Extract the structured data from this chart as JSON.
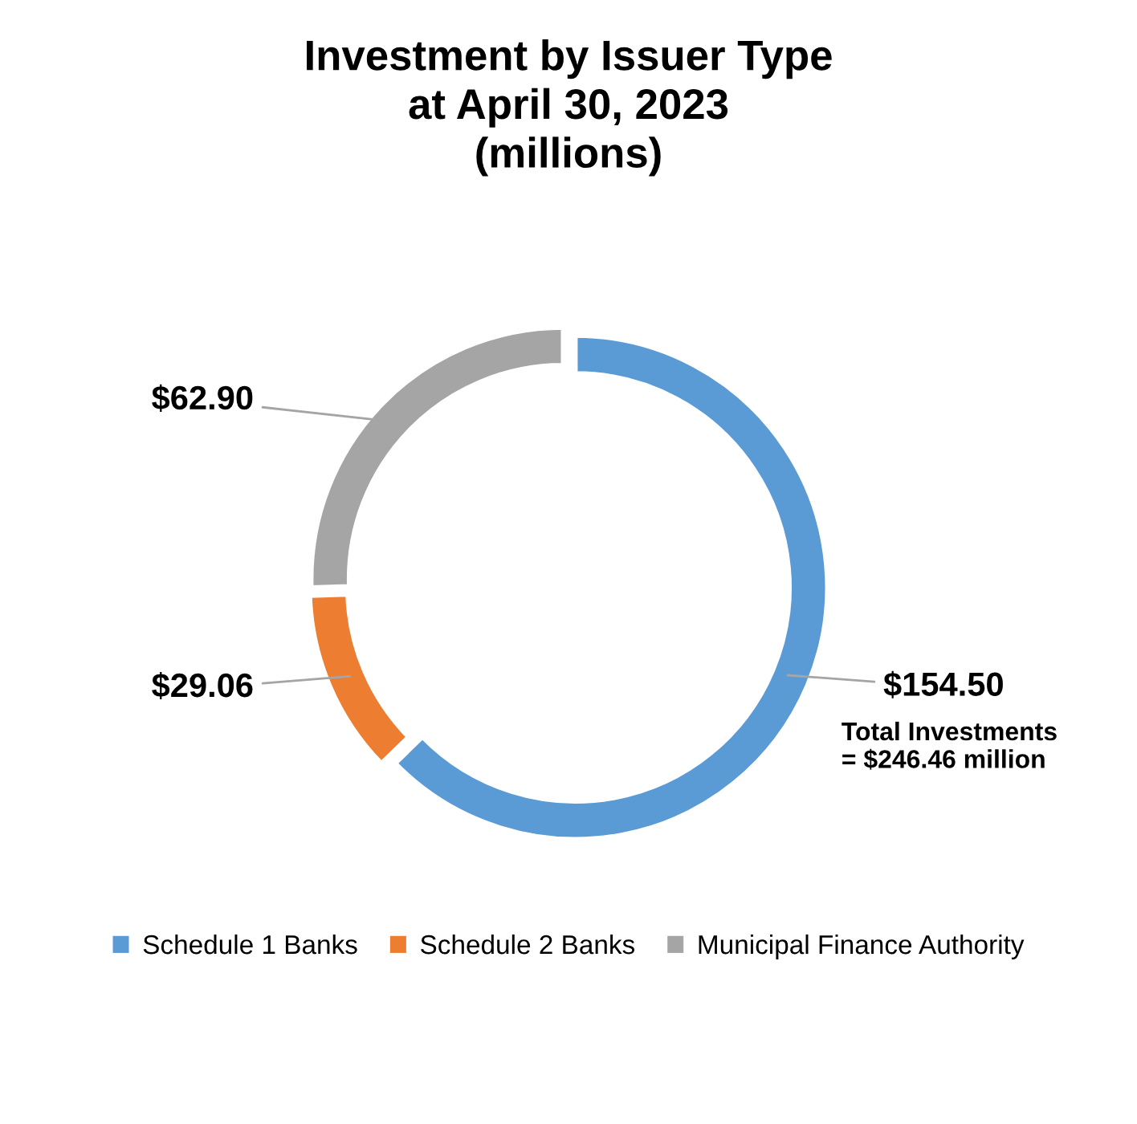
{
  "chart_data": {
    "type": "donut",
    "title": "Investment by Issuer Type\nat April 30, 2023\n(millions)",
    "categories": [
      "Schedule 1 Banks",
      "Schedule 2 Banks",
      "Municipal Finance Authority"
    ],
    "values": [
      154.5,
      29.06,
      62.9
    ],
    "colors": [
      "#5b9bd5",
      "#ed7d31",
      "#a5a5a5"
    ],
    "value_labels": [
      "$154.50",
      "$29.06",
      "$62.90"
    ],
    "annotations": [
      "Total Investments\n= $246.46 million"
    ],
    "legend": "bottom"
  }
}
